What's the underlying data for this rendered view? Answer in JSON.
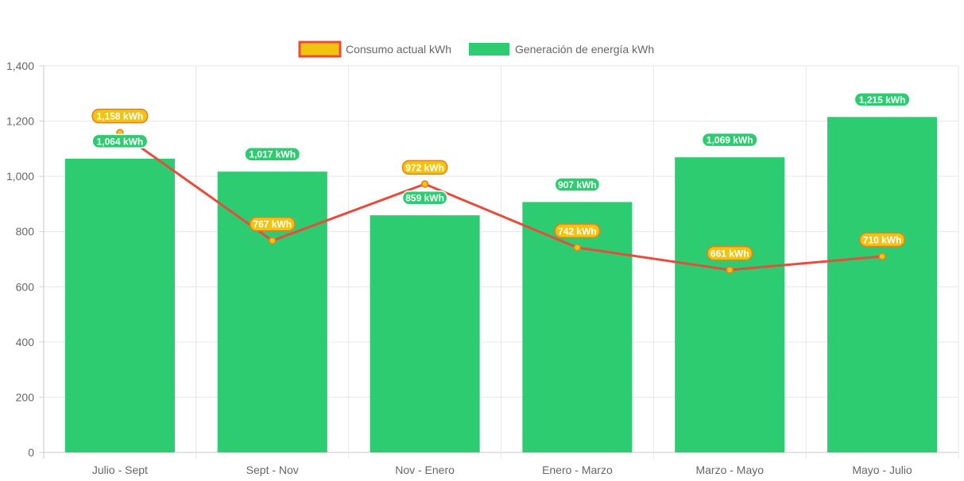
{
  "chart_data": {
    "type": "bar",
    "categories": [
      "Julio - Sept",
      "Sept - Nov",
      "Nov - Enero",
      "Enero - Marzo",
      "Marzo - Mayo",
      "Mayo - Julio"
    ],
    "series": [
      {
        "name": "Consumo actual kWh",
        "chart_type": "line",
        "values": [
          1158,
          767,
          972,
          742,
          661,
          710
        ],
        "labels": [
          "1,158 kWh",
          "767 kWh",
          "972 kWh",
          "742 kWh",
          "661 kWh",
          "710 kWh"
        ],
        "color": "#e74c3c",
        "fill_color": "#f1c40f"
      },
      {
        "name": "Generación de energía kWh",
        "chart_type": "bar",
        "values": [
          1064,
          1017,
          859,
          907,
          1069,
          1215
        ],
        "labels": [
          "1,064 kWh",
          "1,017 kWh",
          "859 kWh",
          "907 kWh",
          "1,069 kWh",
          "1,215 kWh"
        ],
        "color": "#2ecc71"
      }
    ],
    "ylim": [
      0,
      1400
    ],
    "y_ticks": [
      0,
      200,
      400,
      600,
      800,
      1000,
      1200,
      1400
    ],
    "y_tick_labels": [
      "0",
      "200",
      "400",
      "600",
      "800",
      "1,000",
      "1,200",
      "1,400"
    ],
    "grid": true,
    "legend_position": "top"
  }
}
